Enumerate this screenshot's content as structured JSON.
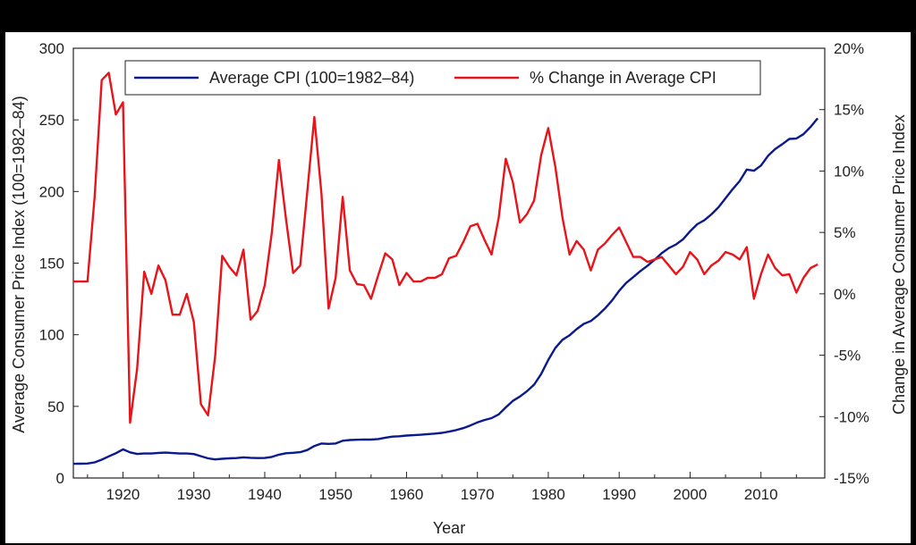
{
  "chart_data": {
    "type": "line",
    "title": "",
    "xlabel": "Year",
    "ylabel_left": "Average Consumer Price Index (100=1982–84)",
    "ylabel_right": "Change in Average Consumer Price Index",
    "xlim": [
      1913,
      2019
    ],
    "ylim_left": [
      0,
      300
    ],
    "ylim_right": [
      -15,
      20
    ],
    "x_ticks": [
      1920,
      1930,
      1940,
      1950,
      1960,
      1970,
      1980,
      1990,
      2000,
      2010
    ],
    "y_left_ticks": [
      0,
      50,
      100,
      150,
      200,
      250,
      300
    ],
    "y_right_ticks": [
      "-15%",
      "-10%",
      "-5%",
      "0%",
      "5%",
      "10%",
      "15%",
      "20%"
    ],
    "y_right_tick_values": [
      -15,
      -10,
      -5,
      0,
      5,
      10,
      15,
      20
    ],
    "grid": false,
    "legend_position": "top",
    "x": [
      1913,
      1914,
      1915,
      1916,
      1917,
      1918,
      1919,
      1920,
      1921,
      1922,
      1923,
      1924,
      1925,
      1926,
      1927,
      1928,
      1929,
      1930,
      1931,
      1932,
      1933,
      1934,
      1935,
      1936,
      1937,
      1938,
      1939,
      1940,
      1941,
      1942,
      1943,
      1944,
      1945,
      1946,
      1947,
      1948,
      1949,
      1950,
      1951,
      1952,
      1953,
      1954,
      1955,
      1956,
      1957,
      1958,
      1959,
      1960,
      1961,
      1962,
      1963,
      1964,
      1965,
      1966,
      1967,
      1968,
      1969,
      1970,
      1971,
      1972,
      1973,
      1974,
      1975,
      1976,
      1977,
      1978,
      1979,
      1980,
      1981,
      1982,
      1983,
      1984,
      1985,
      1986,
      1987,
      1988,
      1989,
      1990,
      1991,
      1992,
      1993,
      1994,
      1995,
      1996,
      1997,
      1998,
      1999,
      2000,
      2001,
      2002,
      2003,
      2004,
      2005,
      2006,
      2007,
      2008,
      2009,
      2010,
      2011,
      2012,
      2013,
      2014,
      2015,
      2016,
      2017,
      2018
    ],
    "series": [
      {
        "name": "Average CPI (100=1982–84)",
        "axis": "left",
        "color": "#0a1a8c",
        "values": [
          9.9,
          10.0,
          10.1,
          10.9,
          12.8,
          15.1,
          17.3,
          20.0,
          17.9,
          16.8,
          17.1,
          17.1,
          17.5,
          17.7,
          17.4,
          17.1,
          17.1,
          16.7,
          15.2,
          13.7,
          13.0,
          13.4,
          13.7,
          13.9,
          14.4,
          14.1,
          13.9,
          14.0,
          14.7,
          16.3,
          17.3,
          17.6,
          18.0,
          19.5,
          22.3,
          24.1,
          23.8,
          24.1,
          26.0,
          26.5,
          26.7,
          26.9,
          26.8,
          27.2,
          28.1,
          28.9,
          29.1,
          29.6,
          29.9,
          30.2,
          30.6,
          31.0,
          31.5,
          32.4,
          33.4,
          34.8,
          36.7,
          38.8,
          40.5,
          41.8,
          44.4,
          49.3,
          53.8,
          56.9,
          60.6,
          65.2,
          72.6,
          82.4,
          90.9,
          96.5,
          99.6,
          103.9,
          107.6,
          109.6,
          113.6,
          118.3,
          124.0,
          130.7,
          136.2,
          140.3,
          144.5,
          148.2,
          152.4,
          156.9,
          160.5,
          163.0,
          166.6,
          172.2,
          177.1,
          179.9,
          184.0,
          188.9,
          195.3,
          201.6,
          207.3,
          215.3,
          214.5,
          218.1,
          224.9,
          229.6,
          233.0,
          236.7,
          237.0,
          240.0,
          245.1,
          251.1
        ]
      },
      {
        "name": "% Change in Average CPI",
        "axis": "right",
        "color": "#e8141a",
        "values": [
          1.0,
          1.0,
          1.0,
          7.9,
          17.4,
          18.0,
          14.6,
          15.6,
          -10.5,
          -6.1,
          1.8,
          0.0,
          2.3,
          1.1,
          -1.7,
          -1.7,
          0.0,
          -2.3,
          -9.0,
          -9.9,
          -5.1,
          3.1,
          2.2,
          1.5,
          3.6,
          -2.1,
          -1.4,
          0.7,
          5.0,
          10.9,
          6.1,
          1.7,
          2.3,
          8.3,
          14.4,
          8.1,
          -1.2,
          1.3,
          7.9,
          1.9,
          0.8,
          0.7,
          -0.4,
          1.5,
          3.3,
          2.8,
          0.7,
          1.7,
          1.0,
          1.0,
          1.3,
          1.3,
          1.6,
          2.9,
          3.1,
          4.2,
          5.5,
          5.7,
          4.4,
          3.2,
          6.2,
          11.0,
          9.1,
          5.8,
          6.5,
          7.6,
          11.3,
          13.5,
          10.3,
          6.2,
          3.2,
          4.3,
          3.6,
          1.9,
          3.6,
          4.1,
          4.8,
          5.4,
          4.2,
          3.0,
          3.0,
          2.6,
          2.8,
          3.0,
          2.3,
          1.6,
          2.2,
          3.4,
          2.8,
          1.6,
          2.3,
          2.7,
          3.4,
          3.2,
          2.8,
          3.8,
          -0.4,
          1.6,
          3.2,
          2.1,
          1.5,
          1.6,
          0.1,
          1.3,
          2.1,
          2.4
        ]
      }
    ]
  }
}
